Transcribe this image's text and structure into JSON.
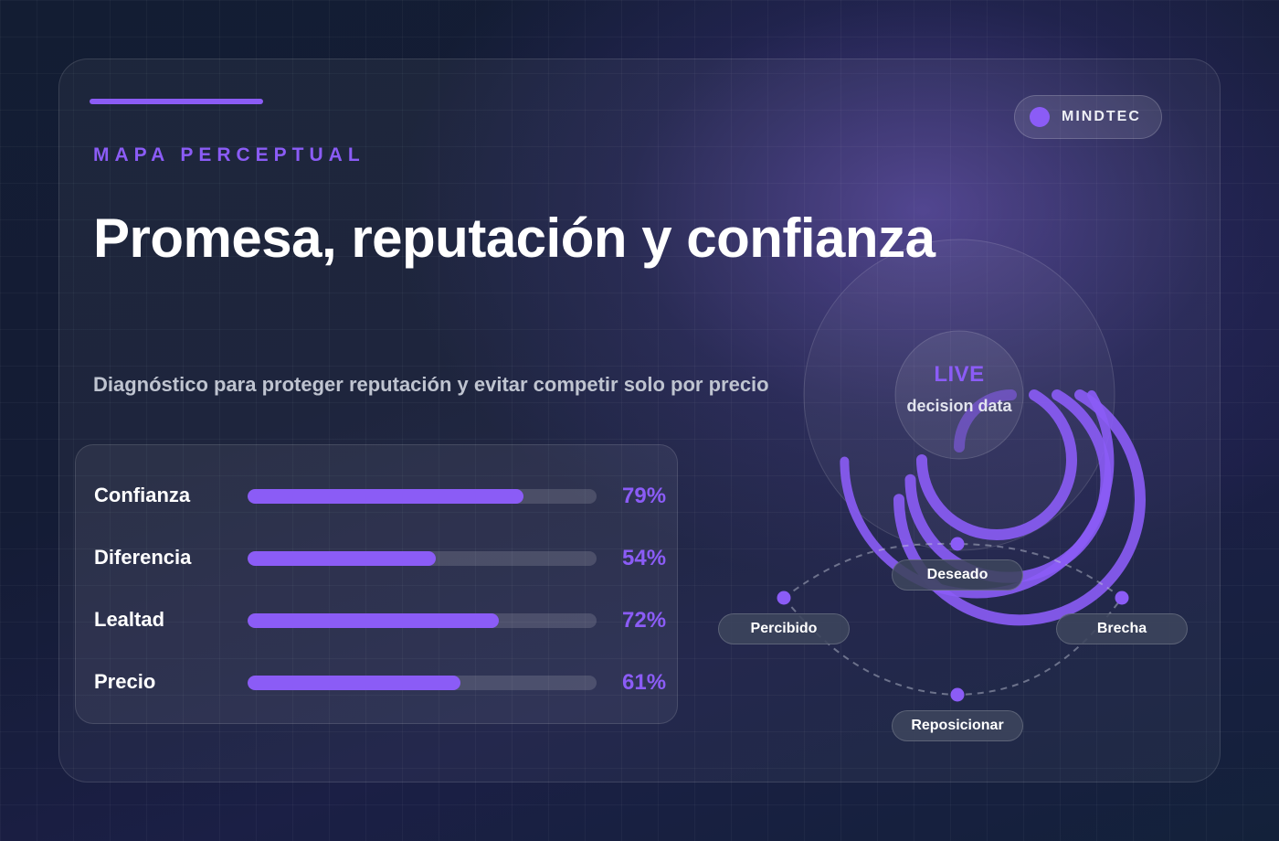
{
  "header": {
    "eyebrow": "MAPA PERCEPTUAL",
    "brand": "MINDTEC",
    "title": "Promesa, reputación y confianza",
    "subtitle": "Diagnóstico para proteger reputación y evitar competir solo por precio"
  },
  "metrics": [
    {
      "label": "Confianza",
      "value": 79,
      "display": "79%"
    },
    {
      "label": "Diferencia",
      "value": 54,
      "display": "54%"
    },
    {
      "label": "Lealtad",
      "value": 72,
      "display": "72%"
    },
    {
      "label": "Precio",
      "value": 61,
      "display": "61%"
    }
  ],
  "gauge": {
    "title": "LIVE",
    "subtitle": "decision data"
  },
  "map_nodes": {
    "top": "Deseado",
    "left": "Percibido",
    "right": "Brecha",
    "bottom": "Reposicionar"
  },
  "colors": {
    "accent": "#8b5cf6",
    "background": "#0f1a2b"
  }
}
